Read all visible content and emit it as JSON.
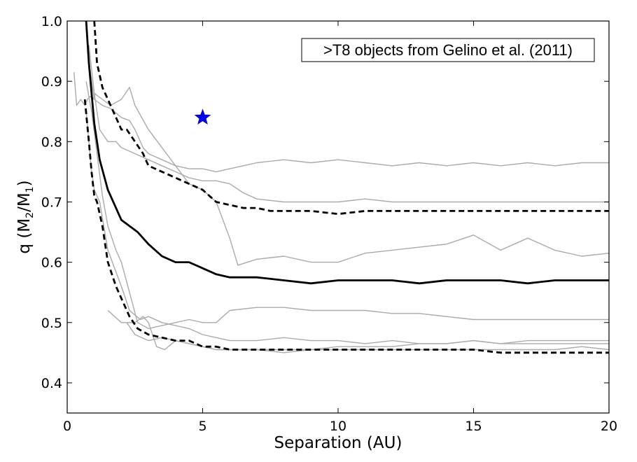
{
  "chart_data": {
    "type": "line",
    "xlabel": "Separation (AU)",
    "ylabel_main": "q (M",
    "ylabel_sub1": "2",
    "ylabel_mid": "/M",
    "ylabel_sub2": "1",
    "ylabel_end": ")",
    "xlim": [
      0,
      20
    ],
    "ylim": [
      0.35,
      1.0
    ],
    "xticks": [
      0,
      5,
      10,
      15,
      20
    ],
    "xtick_labels": [
      "0",
      "5",
      "10",
      "15",
      "20"
    ],
    "yticks": [
      0.4,
      0.5,
      0.6,
      0.7,
      0.8,
      0.9,
      1.0
    ],
    "ytick_labels": [
      "0.4",
      "0.5",
      "0.6",
      "0.7",
      "0.8",
      "0.9",
      "1.0"
    ],
    "legend": {
      "text": ">T8 objects from Gelino et al. (2011)",
      "placement": "top-right"
    },
    "colors": {
      "gray": "#aaaaaa",
      "black": "#000000",
      "star": "#0000ee"
    },
    "marker": {
      "name": "Star object",
      "x": 5.0,
      "y": 0.84,
      "symbol": "star"
    },
    "series": [
      {
        "name": "gray-upper-1",
        "style": "gray",
        "x": [
          0.75,
          1.0,
          1.3,
          1.6,
          2.0,
          2.3,
          2.5,
          2.8,
          3.0,
          3.5,
          4.0,
          4.5,
          5.0,
          5.5,
          6.0,
          6.5,
          7.0,
          8.0,
          9.0,
          10.0,
          11.0,
          12.0,
          13.0,
          14.0,
          15.0,
          16.0,
          17.0,
          18.0,
          19.0,
          20.0
        ],
        "y": [
          0.95,
          0.87,
          0.86,
          0.855,
          0.84,
          0.835,
          0.82,
          0.79,
          0.78,
          0.77,
          0.76,
          0.755,
          0.755,
          0.75,
          0.755,
          0.76,
          0.765,
          0.77,
          0.765,
          0.77,
          0.765,
          0.76,
          0.765,
          0.76,
          0.765,
          0.76,
          0.765,
          0.76,
          0.765,
          0.765
        ]
      },
      {
        "name": "gray-upper-2",
        "style": "gray",
        "x": [
          1.0,
          1.2,
          1.5,
          1.8,
          2.0,
          2.5,
          3.0,
          3.5,
          4.0,
          4.5,
          5.0,
          5.5,
          6.0,
          6.5,
          7.0,
          8.0,
          9.0,
          10.0,
          11.0,
          12.0,
          13.0,
          14.0,
          15.0,
          16.0,
          17.0,
          18.0,
          19.0,
          20.0
        ],
        "y": [
          0.88,
          0.82,
          0.8,
          0.8,
          0.79,
          0.78,
          0.77,
          0.76,
          0.75,
          0.74,
          0.735,
          0.735,
          0.73,
          0.715,
          0.705,
          0.7,
          0.7,
          0.7,
          0.705,
          0.7,
          0.7,
          0.7,
          0.7,
          0.7,
          0.7,
          0.7,
          0.7,
          0.7
        ]
      },
      {
        "name": "gray-mid-peak",
        "style": "gray",
        "x": [
          0.8,
          1.0,
          1.3,
          1.6,
          2.0,
          2.3,
          2.5,
          3.0,
          3.5,
          4.0,
          4.5,
          5.0,
          5.5,
          6.0,
          6.3,
          7.0,
          8.0,
          9.0,
          10.0,
          11.0,
          12.0,
          13.0,
          14.0,
          15.0,
          16.0,
          17.0,
          18.0,
          19.0,
          20.0
        ],
        "y": [
          0.96,
          0.88,
          0.87,
          0.86,
          0.87,
          0.89,
          0.86,
          0.82,
          0.79,
          0.76,
          0.73,
          0.72,
          0.7,
          0.64,
          0.595,
          0.605,
          0.61,
          0.6,
          0.6,
          0.615,
          0.62,
          0.625,
          0.63,
          0.645,
          0.62,
          0.64,
          0.62,
          0.61,
          0.615
        ]
      },
      {
        "name": "gray-left-edge",
        "style": "gray",
        "x": [
          0.25,
          0.35,
          0.5,
          0.65,
          0.75,
          0.85,
          0.95,
          1.05
        ],
        "y": [
          0.915,
          0.86,
          0.87,
          0.86,
          0.87,
          0.875,
          0.87,
          0.88
        ]
      },
      {
        "name": "gray-mid-drop",
        "style": "gray",
        "x": [
          0.7,
          0.9,
          1.1,
          1.3,
          1.5,
          1.8,
          2.0,
          2.3,
          2.6,
          3.0,
          3.5,
          4.0,
          4.5,
          5.0,
          5.5,
          6.0,
          7.0,
          8.0,
          9.0,
          10.0,
          11.0,
          12.0,
          13.0,
          14.0,
          15.0,
          16.0,
          17.0,
          18.0,
          19.0,
          20.0
        ],
        "y": [
          0.9,
          0.85,
          0.78,
          0.71,
          0.66,
          0.62,
          0.6,
          0.55,
          0.5,
          0.49,
          0.495,
          0.5,
          0.505,
          0.5,
          0.5,
          0.52,
          0.525,
          0.525,
          0.52,
          0.52,
          0.52,
          0.515,
          0.515,
          0.51,
          0.505,
          0.505,
          0.505,
          0.505,
          0.505,
          0.505
        ]
      },
      {
        "name": "gray-lower-1",
        "style": "gray",
        "x": [
          0.7,
          0.9,
          1.0,
          1.2,
          1.5,
          2.0,
          2.3,
          2.7,
          3.0,
          3.5,
          4.0,
          4.5,
          5.0,
          5.5,
          6.0,
          7.0,
          8.0,
          9.0,
          10.0,
          11.0,
          12.0,
          13.0,
          14.0,
          15.0,
          16.0,
          17.0,
          18.0,
          19.0,
          20.0
        ],
        "y": [
          0.85,
          0.75,
          0.72,
          0.7,
          0.62,
          0.56,
          0.52,
          0.505,
          0.51,
          0.5,
          0.495,
          0.49,
          0.48,
          0.475,
          0.47,
          0.47,
          0.475,
          0.47,
          0.47,
          0.465,
          0.47,
          0.465,
          0.465,
          0.47,
          0.465,
          0.465,
          0.465,
          0.465,
          0.465
        ]
      },
      {
        "name": "gray-lower-2",
        "style": "gray",
        "x": [
          1.5,
          2.0,
          2.5,
          2.8,
          3.0,
          3.3,
          3.6,
          4.0,
          4.5,
          5.0,
          5.5,
          6.0,
          7.0,
          8.0,
          9.0,
          10.0,
          11.0,
          12.0,
          13.0,
          14.0,
          15.0,
          16.0,
          17.0,
          18.0,
          19.0,
          20.0
        ],
        "y": [
          0.52,
          0.5,
          0.5,
          0.51,
          0.5,
          0.46,
          0.455,
          0.47,
          0.465,
          0.46,
          0.455,
          0.455,
          0.455,
          0.455,
          0.455,
          0.46,
          0.46,
          0.46,
          0.465,
          0.465,
          0.47,
          0.465,
          0.47,
          0.47,
          0.47,
          0.47
        ]
      },
      {
        "name": "gray-lower-3",
        "style": "gray",
        "x": [
          2.2,
          2.5,
          3.0,
          3.5,
          4.0,
          4.5,
          5.0,
          5.5,
          6.0,
          7.0,
          8.0,
          9.0,
          10.0,
          11.0,
          12.0,
          13.0,
          14.0,
          15.0,
          16.0,
          17.0,
          18.0,
          19.0,
          20.0
        ],
        "y": [
          0.5,
          0.48,
          0.47,
          0.475,
          0.47,
          0.465,
          0.46,
          0.455,
          0.455,
          0.455,
          0.45,
          0.455,
          0.455,
          0.455,
          0.455,
          0.455,
          0.455,
          0.455,
          0.455,
          0.455,
          0.455,
          0.46,
          0.455
        ]
      },
      {
        "name": "upper-envelope",
        "style": "black-dashed",
        "x": [
          1.0,
          1.1,
          1.3,
          1.5,
          1.8,
          2.0,
          2.2,
          2.5,
          2.8,
          3.0,
          3.5,
          4.0,
          4.5,
          5.0,
          5.5,
          6.0,
          6.5,
          7.0,
          7.5,
          8.0,
          9.0,
          10.0,
          11.0,
          12.0,
          13.0,
          14.0,
          15.0,
          16.0,
          17.0,
          18.0,
          19.0,
          20.0
        ],
        "y": [
          1.0,
          0.93,
          0.89,
          0.87,
          0.84,
          0.82,
          0.82,
          0.8,
          0.78,
          0.76,
          0.75,
          0.74,
          0.73,
          0.72,
          0.7,
          0.695,
          0.69,
          0.69,
          0.685,
          0.685,
          0.685,
          0.68,
          0.685,
          0.685,
          0.685,
          0.685,
          0.685,
          0.685,
          0.685,
          0.685,
          0.685,
          0.685
        ]
      },
      {
        "name": "median",
        "style": "black-solid",
        "x": [
          0.7,
          0.8,
          1.0,
          1.2,
          1.5,
          1.8,
          2.0,
          2.3,
          2.6,
          3.0,
          3.5,
          4.0,
          4.5,
          5.0,
          5.5,
          6.0,
          6.5,
          7.0,
          8.0,
          9.0,
          10.0,
          11.0,
          12.0,
          13.0,
          14.0,
          15.0,
          16.0,
          17.0,
          18.0,
          19.0,
          20.0
        ],
        "y": [
          1.0,
          0.93,
          0.83,
          0.77,
          0.72,
          0.69,
          0.67,
          0.66,
          0.65,
          0.63,
          0.61,
          0.6,
          0.6,
          0.59,
          0.58,
          0.575,
          0.575,
          0.575,
          0.57,
          0.565,
          0.57,
          0.57,
          0.57,
          0.565,
          0.57,
          0.57,
          0.57,
          0.565,
          0.57,
          0.57,
          0.57
        ]
      },
      {
        "name": "lower-envelope",
        "style": "black-dashed",
        "x": [
          0.65,
          0.8,
          0.9,
          1.0,
          1.1,
          1.3,
          1.5,
          1.8,
          2.0,
          2.3,
          2.6,
          3.0,
          3.5,
          4.0,
          4.5,
          5.0,
          5.5,
          6.0,
          7.0,
          8.0,
          9.0,
          10.0,
          11.0,
          12.0,
          13.0,
          14.0,
          15.0,
          16.0,
          17.0,
          18.0,
          19.0,
          20.0
        ],
        "y": [
          0.87,
          0.8,
          0.75,
          0.71,
          0.7,
          0.66,
          0.6,
          0.56,
          0.54,
          0.51,
          0.49,
          0.48,
          0.475,
          0.47,
          0.47,
          0.46,
          0.46,
          0.455,
          0.455,
          0.455,
          0.455,
          0.455,
          0.455,
          0.455,
          0.455,
          0.455,
          0.455,
          0.45,
          0.45,
          0.45,
          0.45,
          0.45
        ]
      }
    ]
  }
}
